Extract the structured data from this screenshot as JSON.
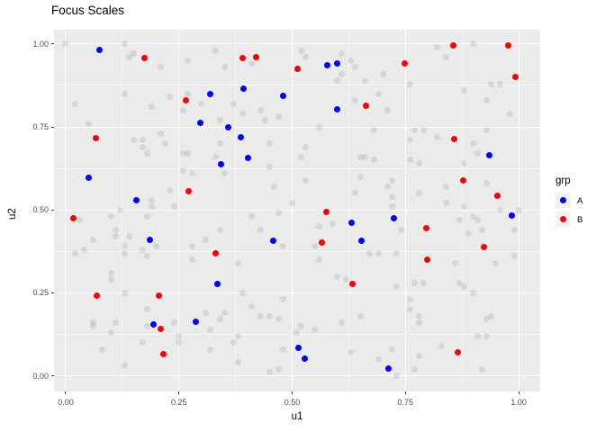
{
  "title": "Focus Scales",
  "colors": {
    "panel_bg": "#EBEBEB",
    "grid": "#FFFFFF",
    "tick_text": "#4D4D4D",
    "text": "#000000",
    "legend_key_bg": "#F2F2F2",
    "group_a": "#0000FF",
    "group_b": "#FF0000",
    "background_points": "#D8D8D8"
  },
  "legend": {
    "title": "grp",
    "entries": [
      {
        "label": "A",
        "color": "#0000FF"
      },
      {
        "label": "B",
        "color": "#FF0000"
      }
    ]
  },
  "chart_data": {
    "type": "scatter",
    "title": "Focus Scales",
    "xlabel": "u1",
    "ylabel": "u2",
    "xlim": [
      -0.0258,
      1.0475
    ],
    "ylim": [
      -0.047,
      1.043
    ],
    "grid": true,
    "legend_title": "grp",
    "legend_position": "right",
    "x_ticks": [
      0,
      0.25,
      0.5,
      0.75,
      1.0
    ],
    "x_tick_labels": [
      "0.00",
      "0.25",
      "0.50",
      "0.75",
      "1.00"
    ],
    "y_ticks": [
      0,
      0.25,
      0.5,
      0.75,
      1.0
    ],
    "y_tick_labels": [
      "0.00",
      "0.25",
      "0.50",
      "0.75",
      "1.00"
    ],
    "series": [
      {
        "name": "background",
        "in_legend": false,
        "color": "rgba(40,40,40,0.105)",
        "points": [
          [
            0.0,
            1.0
          ],
          [
            0.13,
            1.0
          ],
          [
            0.14,
            0.96
          ],
          [
            0.15,
            0.97
          ],
          [
            0.21,
            0.93
          ],
          [
            0.27,
            0.95
          ],
          [
            0.33,
            0.98
          ],
          [
            0.35,
            0.93
          ],
          [
            0.41,
            0.94
          ],
          [
            0.02,
            0.82
          ],
          [
            0.13,
            0.85
          ],
          [
            0.19,
            0.81
          ],
          [
            0.23,
            0.84
          ],
          [
            0.27,
            0.85
          ],
          [
            0.26,
            0.8
          ],
          [
            0.3,
            0.82
          ],
          [
            0.37,
            0.82
          ],
          [
            0.39,
            0.79
          ],
          [
            0.43,
            0.8
          ],
          [
            0.44,
            0.77
          ],
          [
            0.47,
            0.78
          ],
          [
            0.05,
            0.76
          ],
          [
            0.34,
            0.77
          ],
          [
            0.15,
            0.71
          ],
          [
            0.17,
            0.71
          ],
          [
            0.17,
            0.69
          ],
          [
            0.21,
            0.73
          ],
          [
            0.22,
            0.7
          ],
          [
            0.34,
            0.7
          ],
          [
            0.45,
            0.7
          ],
          [
            0.52,
            0.98
          ],
          [
            0.53,
            0.96
          ],
          [
            0.61,
            0.97
          ],
          [
            0.63,
            0.95
          ],
          [
            0.64,
            0.93
          ],
          [
            0.61,
            0.91
          ],
          [
            0.6,
            0.89
          ],
          [
            0.66,
            0.89
          ],
          [
            0.7,
            0.91
          ],
          [
            0.69,
            0.85
          ],
          [
            0.64,
            0.83
          ],
          [
            0.71,
            0.8
          ],
          [
            0.76,
            0.88
          ],
          [
            0.82,
            0.99
          ],
          [
            0.9,
            1.0
          ],
          [
            0.84,
            0.96
          ],
          [
            0.94,
            0.88
          ],
          [
            0.96,
            0.88
          ],
          [
            0.88,
            0.86
          ],
          [
            0.93,
            0.83
          ],
          [
            0.98,
            0.79
          ],
          [
            0.56,
            0.75
          ],
          [
            0.68,
            0.74
          ],
          [
            0.77,
            0.74
          ],
          [
            0.79,
            0.74
          ],
          [
            0.82,
            0.72
          ],
          [
            0.9,
            0.7
          ],
          [
            0.93,
            0.74
          ],
          [
            0.76,
            0.71
          ],
          [
            0.53,
            0.69
          ],
          [
            0.18,
            0.67
          ],
          [
            0.26,
            0.67
          ],
          [
            0.27,
            0.67
          ],
          [
            0.33,
            0.66
          ],
          [
            0.26,
            0.62
          ],
          [
            0.28,
            0.61
          ],
          [
            0.35,
            0.61
          ],
          [
            0.45,
            0.63
          ],
          [
            0.23,
            0.56
          ],
          [
            0.46,
            0.57
          ],
          [
            0.5,
            0.52
          ],
          [
            0.19,
            0.53
          ],
          [
            0.19,
            0.51
          ],
          [
            0.12,
            0.5
          ],
          [
            0.1,
            0.48
          ],
          [
            0.18,
            0.48
          ],
          [
            0.24,
            0.51
          ],
          [
            0.03,
            0.47
          ],
          [
            0.11,
            0.44
          ],
          [
            0.11,
            0.42
          ],
          [
            0.14,
            0.42
          ],
          [
            0.06,
            0.41
          ],
          [
            0.04,
            0.38
          ],
          [
            0.13,
            0.39
          ],
          [
            0.17,
            0.38
          ],
          [
            0.2,
            0.39
          ],
          [
            0.13,
            0.37
          ],
          [
            0.02,
            0.37
          ],
          [
            0.34,
            0.44
          ],
          [
            0.31,
            0.41
          ],
          [
            0.28,
            0.39
          ],
          [
            0.38,
            0.34
          ],
          [
            0.28,
            0.35
          ],
          [
            0.18,
            0.36
          ],
          [
            0.41,
            0.48
          ],
          [
            0.47,
            0.49
          ],
          [
            0.43,
            0.44
          ],
          [
            0.48,
            0.39
          ],
          [
            0.52,
            0.66
          ],
          [
            0.65,
            0.66
          ],
          [
            0.66,
            0.66
          ],
          [
            0.68,
            0.65
          ],
          [
            0.76,
            0.65
          ],
          [
            0.78,
            0.64
          ],
          [
            0.88,
            0.64
          ],
          [
            0.91,
            0.67
          ],
          [
            0.53,
            0.59
          ],
          [
            0.65,
            0.6
          ],
          [
            0.72,
            0.59
          ],
          [
            0.71,
            0.57
          ],
          [
            0.64,
            0.55
          ],
          [
            0.72,
            0.54
          ],
          [
            0.78,
            0.55
          ],
          [
            0.84,
            0.57
          ],
          [
            0.93,
            0.58
          ],
          [
            0.84,
            0.52
          ],
          [
            0.88,
            0.51
          ],
          [
            0.72,
            0.51
          ],
          [
            0.96,
            0.5
          ],
          [
            1.0,
            0.5
          ],
          [
            0.9,
            0.48
          ],
          [
            0.87,
            0.47
          ],
          [
            0.91,
            0.47
          ],
          [
            0.74,
            0.44
          ],
          [
            0.92,
            0.44
          ],
          [
            0.99,
            0.44
          ],
          [
            0.89,
            0.43
          ],
          [
            0.55,
            0.39
          ],
          [
            0.67,
            0.37
          ],
          [
            0.69,
            0.37
          ],
          [
            0.73,
            0.37
          ],
          [
            0.56,
            0.35
          ],
          [
            0.86,
            0.34
          ],
          [
            0.95,
            0.34
          ],
          [
            0.99,
            0.36
          ],
          [
            0.56,
            0.45
          ],
          [
            0.59,
            0.46
          ],
          [
            0.1,
            0.31
          ],
          [
            0.1,
            0.29
          ],
          [
            0.13,
            0.25
          ],
          [
            0.06,
            0.16
          ],
          [
            0.06,
            0.15
          ],
          [
            0.11,
            0.16
          ],
          [
            0.18,
            0.2
          ],
          [
            0.18,
            0.15
          ],
          [
            0.1,
            0.13
          ],
          [
            0.08,
            0.08
          ],
          [
            0.17,
            0.1
          ],
          [
            0.13,
            0.03
          ],
          [
            0.24,
            0.16
          ],
          [
            0.25,
            0.12
          ],
          [
            0.25,
            0.1
          ],
          [
            0.31,
            0.19
          ],
          [
            0.34,
            0.17
          ],
          [
            0.35,
            0.19
          ],
          [
            0.32,
            0.14
          ],
          [
            0.32,
            0.08
          ],
          [
            0.37,
            0.1
          ],
          [
            0.38,
            0.04
          ],
          [
            0.39,
            0.25
          ],
          [
            0.41,
            0.21
          ],
          [
            0.43,
            0.18
          ],
          [
            0.45,
            0.18
          ],
          [
            0.47,
            0.17
          ],
          [
            0.48,
            0.23
          ],
          [
            0.38,
            0.12
          ],
          [
            0.48,
            0.08
          ],
          [
            0.47,
            0.02
          ],
          [
            0.45,
            0.01
          ],
          [
            0.51,
            0.13
          ],
          [
            0.6,
            0.3
          ],
          [
            0.62,
            0.29
          ],
          [
            0.73,
            0.27
          ],
          [
            0.77,
            0.28
          ],
          [
            0.79,
            0.28
          ],
          [
            0.87,
            0.28
          ],
          [
            0.88,
            0.27
          ],
          [
            0.9,
            0.25
          ],
          [
            0.76,
            0.23
          ],
          [
            0.76,
            0.2
          ],
          [
            0.78,
            0.18
          ],
          [
            0.78,
            0.16
          ],
          [
            0.65,
            0.18
          ],
          [
            0.61,
            0.16
          ],
          [
            0.55,
            0.14
          ],
          [
            0.93,
            0.17
          ],
          [
            0.94,
            0.18
          ],
          [
            0.91,
            0.12
          ],
          [
            0.93,
            0.12
          ],
          [
            0.83,
            0.09
          ],
          [
            0.78,
            0.06
          ],
          [
            0.63,
            0.07
          ],
          [
            0.69,
            0.05
          ],
          [
            0.72,
            0.08
          ],
          [
            0.73,
            0.0
          ],
          [
            0.77,
            0.02
          ],
          [
            0.92,
            0.02
          ],
          [
            0.52,
            0.15
          ]
        ]
      },
      {
        "name": "A",
        "in_legend": true,
        "color": "#0000FF",
        "points": [
          [
            0.074,
            0.982
          ],
          [
            0.319,
            0.849
          ],
          [
            0.392,
            0.866
          ],
          [
            0.48,
            0.845
          ],
          [
            0.297,
            0.762
          ],
          [
            0.358,
            0.748
          ],
          [
            0.387,
            0.72
          ],
          [
            0.577,
            0.937
          ],
          [
            0.6,
            0.942
          ],
          [
            0.6,
            0.803
          ],
          [
            0.936,
            0.666
          ],
          [
            0.342,
            0.638
          ],
          [
            0.402,
            0.657
          ],
          [
            0.05,
            0.596
          ],
          [
            0.157,
            0.529
          ],
          [
            0.185,
            0.41
          ],
          [
            0.458,
            0.408
          ],
          [
            0.724,
            0.476
          ],
          [
            0.632,
            0.462
          ],
          [
            0.652,
            0.406
          ],
          [
            0.985,
            0.484
          ],
          [
            0.335,
            0.277
          ],
          [
            0.193,
            0.155
          ],
          [
            0.287,
            0.162
          ],
          [
            0.513,
            0.085
          ],
          [
            0.528,
            0.051
          ],
          [
            0.712,
            0.023
          ]
        ]
      },
      {
        "name": "B",
        "in_legend": true,
        "color": "#FF0000",
        "points": [
          [
            0.173,
            0.958
          ],
          [
            0.39,
            0.957
          ],
          [
            0.42,
            0.959
          ],
          [
            0.511,
            0.924
          ],
          [
            0.266,
            0.83
          ],
          [
            0.067,
            0.717
          ],
          [
            0.748,
            0.942
          ],
          [
            0.855,
            0.995
          ],
          [
            0.977,
            0.995
          ],
          [
            0.993,
            0.9
          ],
          [
            0.662,
            0.815
          ],
          [
            0.857,
            0.713
          ],
          [
            0.271,
            0.556
          ],
          [
            0.017,
            0.475
          ],
          [
            0.331,
            0.37
          ],
          [
            0.878,
            0.589
          ],
          [
            0.954,
            0.543
          ],
          [
            0.575,
            0.494
          ],
          [
            0.565,
            0.403
          ],
          [
            0.796,
            0.444
          ],
          [
            0.924,
            0.389
          ],
          [
            0.799,
            0.35
          ],
          [
            0.068,
            0.243
          ],
          [
            0.205,
            0.242
          ],
          [
            0.209,
            0.142
          ],
          [
            0.215,
            0.066
          ],
          [
            0.634,
            0.277
          ],
          [
            0.865,
            0.071
          ]
        ]
      }
    ]
  }
}
